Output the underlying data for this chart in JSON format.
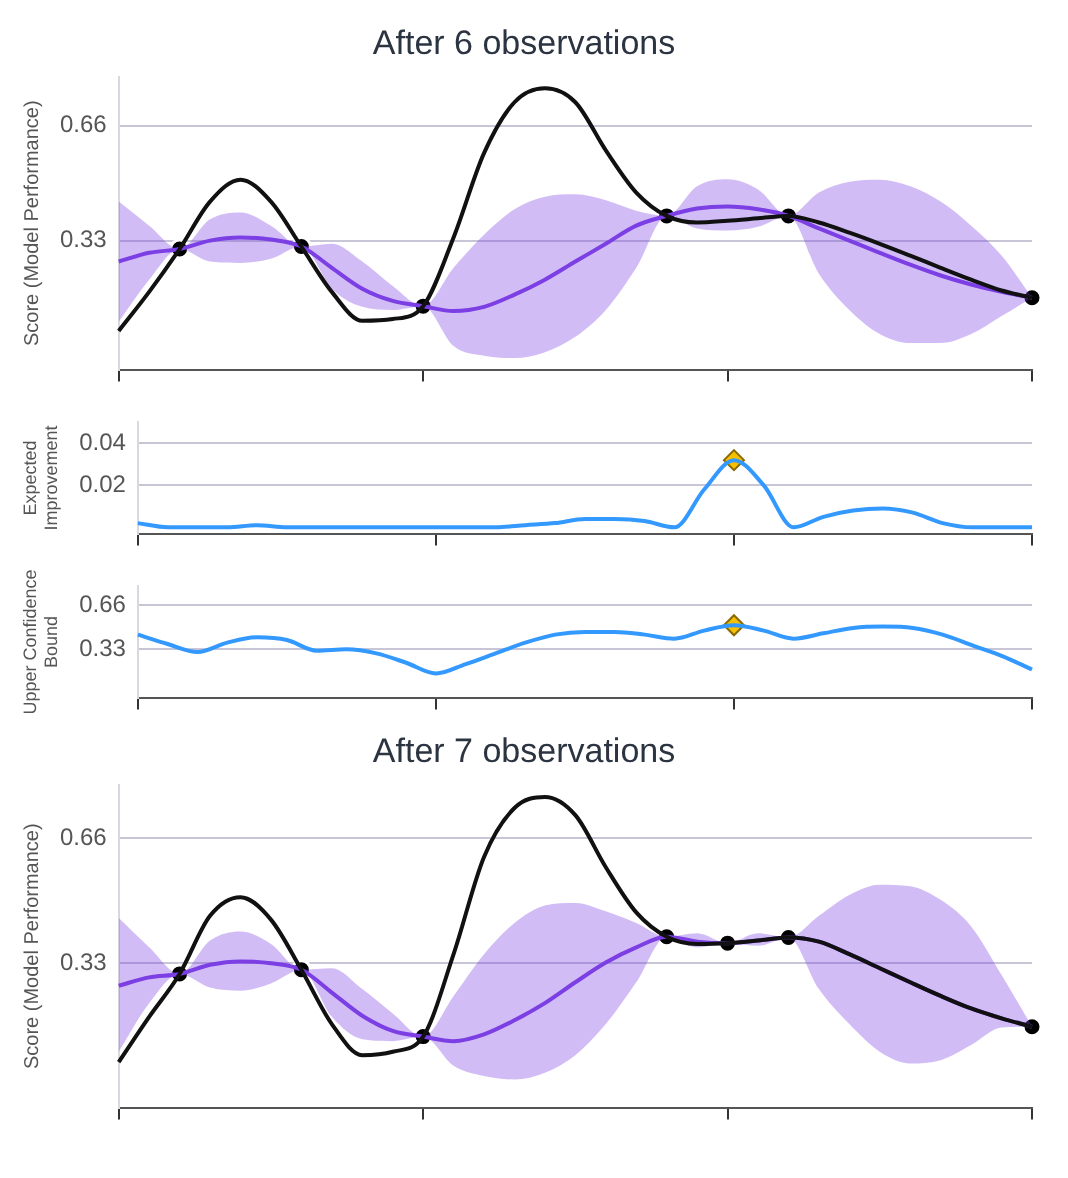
{
  "chart_data": [
    {
      "type": "line",
      "title": "After 6 observations",
      "ylabel": "Score (Model Performance)",
      "categories": [
        null,
        null,
        null,
        null,
        null,
        null,
        null,
        null,
        null,
        null,
        null,
        null,
        null,
        null,
        null,
        null,
        null,
        null,
        null,
        null,
        null,
        null,
        null,
        null,
        null,
        null,
        null,
        null,
        null,
        null,
        null
      ],
      "ylim": [
        -0.04,
        0.8
      ],
      "yticks": [
        0.33,
        0.66
      ],
      "grid": "y",
      "tick_labels": "y",
      "legend": false,
      "series": [
        {
          "color": "#111111",
          "values": [
            0.071,
            0.183,
            0.306,
            0.442,
            0.505,
            0.442,
            0.313,
            0.183,
            0.1,
            0.105,
            0.142,
            0.339,
            0.581,
            0.727,
            0.767,
            0.727,
            0.589,
            0.468,
            0.401,
            0.382,
            0.387,
            0.394,
            0.401,
            0.382,
            0.353,
            0.321,
            0.287,
            0.252,
            0.218,
            0.187,
            0.166
          ]
        },
        {
          "color": "#7b3fe4",
          "values": [
            0.27,
            0.295,
            0.306,
            0.33,
            0.339,
            0.333,
            0.313,
            0.252,
            0.192,
            0.157,
            0.142,
            0.128,
            0.14,
            0.175,
            0.218,
            0.27,
            0.321,
            0.373,
            0.401,
            0.422,
            0.428,
            0.42,
            0.401,
            0.365,
            0.33,
            0.295,
            0.261,
            0.23,
            0.204,
            0.183,
            0.166
          ],
          "upper": [
            0.442,
            0.373,
            0.306,
            0.391,
            0.411,
            0.373,
            0.313,
            0.321,
            0.27,
            0.2,
            0.142,
            0.252,
            0.347,
            0.42,
            0.456,
            0.463,
            0.446,
            0.416,
            0.401,
            0.486,
            0.506,
            0.477,
            0.401,
            0.468,
            0.499,
            0.505,
            0.486,
            0.442,
            0.373,
            0.287,
            0.166
          ],
          "lower": [
            0.097,
            0.218,
            0.306,
            0.27,
            0.266,
            0.278,
            0.313,
            0.192,
            0.14,
            0.131,
            0.142,
            0.028,
            0.0,
            -0.007,
            0.01,
            0.054,
            0.131,
            0.252,
            0.401,
            0.365,
            0.359,
            0.37,
            0.401,
            0.235,
            0.131,
            0.062,
            0.036,
            0.036,
            0.062,
            0.114,
            0.166
          ]
        },
        {
          "type": "scatter",
          "color": "#000000",
          "marker": "circle",
          "values": [
            null,
            null,
            0.306,
            null,
            null,
            null,
            0.313,
            null,
            null,
            null,
            0.142,
            null,
            null,
            null,
            null,
            null,
            null,
            null,
            0.401,
            null,
            null,
            null,
            0.401,
            null,
            null,
            null,
            null,
            null,
            null,
            null,
            0.166
          ]
        }
      ]
    },
    {
      "type": "line",
      "ylabel": "Expected Improvement",
      "categories": [
        null,
        null,
        null,
        null,
        null,
        null,
        null,
        null,
        null,
        null,
        null,
        null,
        null,
        null,
        null,
        null,
        null,
        null,
        null,
        null,
        null,
        null,
        null,
        null,
        null,
        null,
        null,
        null,
        null,
        null,
        null
      ],
      "ylim": [
        -0.003,
        0.05
      ],
      "yticks": [
        0.02,
        0.04
      ],
      "grid": "y",
      "tick_labels": "y",
      "legend": false,
      "series": [
        {
          "color": "#3399ff",
          "values": [
            0.002,
            0,
            0,
            0,
            0.001,
            0,
            0,
            0,
            0,
            0,
            0,
            0,
            0,
            0.001,
            0.002,
            0.004,
            0.004,
            0.003,
            0,
            0.018,
            0.032,
            0.02,
            0,
            0.005,
            0.008,
            0.009,
            0.007,
            0.002,
            0,
            0,
            0
          ]
        },
        {
          "type": "scatter",
          "color": "#f5c000",
          "marker": "diamond",
          "values": [
            null,
            null,
            null,
            null,
            null,
            null,
            null,
            null,
            null,
            null,
            null,
            null,
            null,
            null,
            null,
            null,
            null,
            null,
            null,
            null,
            0.032,
            null,
            null,
            null,
            null,
            null,
            null,
            null,
            null,
            null,
            null
          ]
        }
      ]
    },
    {
      "type": "line",
      "ylabel": "Upper Confidence Bound",
      "categories": [
        null,
        null,
        null,
        null,
        null,
        null,
        null,
        null,
        null,
        null,
        null,
        null,
        null,
        null,
        null,
        null,
        null,
        null,
        null,
        null,
        null,
        null,
        null,
        null,
        null,
        null,
        null,
        null,
        null,
        null,
        null
      ],
      "ylim": [
        -0.03,
        0.8
      ],
      "yticks": [
        0.33,
        0.66
      ],
      "grid": "y",
      "tick_labels": "y",
      "legend": false,
      "series": [
        {
          "color": "#3399ff",
          "values": [
            0.44,
            0.37,
            0.31,
            0.38,
            0.42,
            0.4,
            0.32,
            0.33,
            0.3,
            0.23,
            0.15,
            0.22,
            0.3,
            0.38,
            0.44,
            0.46,
            0.46,
            0.44,
            0.41,
            0.47,
            0.51,
            0.47,
            0.41,
            0.45,
            0.49,
            0.5,
            0.49,
            0.44,
            0.36,
            0.28,
            0.18
          ]
        },
        {
          "type": "scatter",
          "color": "#f5c000",
          "marker": "diamond",
          "values": [
            null,
            null,
            null,
            null,
            null,
            null,
            null,
            null,
            null,
            null,
            null,
            null,
            null,
            null,
            null,
            null,
            null,
            null,
            null,
            null,
            0.51,
            null,
            null,
            null,
            null,
            null,
            null,
            null,
            null,
            null,
            null
          ]
        }
      ]
    },
    {
      "type": "line",
      "title": "After 7 observations",
      "ylabel": "Score (Model Performance)",
      "categories": [
        null,
        null,
        null,
        null,
        null,
        null,
        null,
        null,
        null,
        null,
        null,
        null,
        null,
        null,
        null,
        null,
        null,
        null,
        null,
        null,
        null,
        null,
        null,
        null,
        null,
        null,
        null,
        null,
        null,
        null,
        null
      ],
      "ylim": [
        -0.05,
        0.8
      ],
      "yticks": [
        0.33,
        0.66
      ],
      "grid": "y",
      "tick_labels": "y",
      "legend": false,
      "series": [
        {
          "color": "#111111",
          "values": [
            0.07,
            0.189,
            0.302,
            0.455,
            0.504,
            0.445,
            0.313,
            0.17,
            0.088,
            0.097,
            0.137,
            0.354,
            0.61,
            0.739,
            0.768,
            0.72,
            0.583,
            0.464,
            0.4,
            0.381,
            0.383,
            0.39,
            0.398,
            0.387,
            0.354,
            0.317,
            0.28,
            0.244,
            0.211,
            0.185,
            0.163
          ]
        },
        {
          "color": "#7b3fe4",
          "values": [
            0.271,
            0.293,
            0.302,
            0.326,
            0.335,
            0.33,
            0.313,
            0.253,
            0.192,
            0.152,
            0.137,
            0.125,
            0.143,
            0.18,
            0.225,
            0.28,
            0.332,
            0.372,
            0.4,
            0.387,
            0.383,
            0.39,
            0.398,
            0.387,
            0.354,
            0.317,
            0.28,
            0.244,
            0.211,
            0.185,
            0.163
          ],
          "upper": [
            0.449,
            0.372,
            0.302,
            0.39,
            0.414,
            0.381,
            0.313,
            0.317,
            0.262,
            0.198,
            0.137,
            0.244,
            0.354,
            0.436,
            0.482,
            0.489,
            0.467,
            0.436,
            0.4,
            0.409,
            0.383,
            0.409,
            0.398,
            0.455,
            0.51,
            0.537,
            0.533,
            0.497,
            0.427,
            0.299,
            0.163
          ],
          "lower": [
            0.097,
            0.225,
            0.302,
            0.266,
            0.258,
            0.277,
            0.313,
            0.189,
            0.13,
            0.125,
            0.137,
            0.06,
            0.033,
            0.024,
            0.042,
            0.088,
            0.17,
            0.28,
            0.4,
            0.372,
            0.383,
            0.376,
            0.398,
            0.262,
            0.17,
            0.097,
            0.066,
            0.075,
            0.115,
            0.161,
            0.163
          ]
        },
        {
          "type": "scatter",
          "color": "#000000",
          "marker": "circle",
          "values": [
            null,
            null,
            0.302,
            null,
            null,
            null,
            0.313,
            null,
            null,
            null,
            0.137,
            null,
            null,
            null,
            null,
            null,
            null,
            null,
            0.4,
            null,
            0.383,
            null,
            0.398,
            null,
            null,
            null,
            null,
            null,
            null,
            null,
            0.163
          ]
        }
      ]
    }
  ]
}
